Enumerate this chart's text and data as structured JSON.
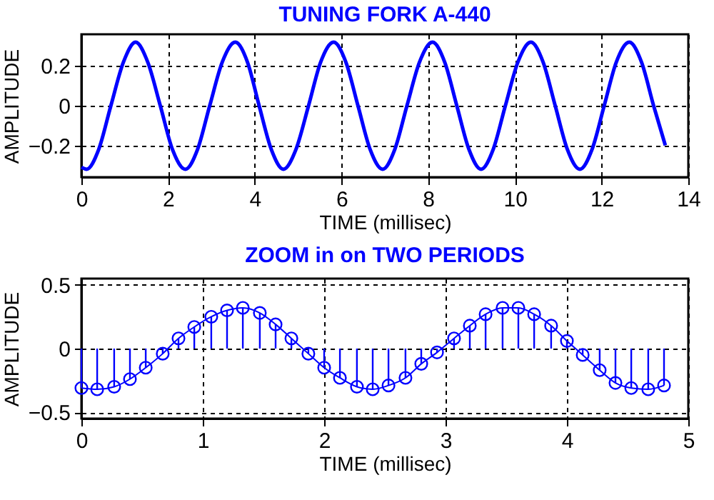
{
  "chart_data": [
    {
      "type": "line",
      "title": "TUNING FORK   A-440",
      "xlabel": "TIME   (millisec)",
      "ylabel": "AMPLITUDE",
      "xlim": [
        0,
        14
      ],
      "xticks": [
        0,
        2,
        4,
        6,
        8,
        10,
        12,
        14
      ],
      "ylim": [
        -0.36,
        0.36
      ],
      "yticks": [
        -0.2,
        0,
        0.2
      ],
      "grid": true,
      "x": [
        0,
        0.12,
        0.4,
        0.68,
        0.97,
        1.25,
        1.53,
        1.82,
        2.1,
        2.4,
        2.68,
        2.96,
        3.25,
        3.55,
        3.83,
        4.1,
        4.38,
        4.66,
        4.95,
        5.24,
        5.52,
        5.82,
        6.1,
        6.38,
        6.66,
        6.95,
        7.23,
        7.51,
        7.8,
        8.1,
        8.38,
        8.66,
        8.94,
        9.22,
        9.5,
        9.78,
        10.07,
        10.37,
        10.65,
        10.93,
        11.21,
        11.5,
        11.78,
        12.06,
        12.34,
        12.64,
        12.92,
        13.2,
        13.47
      ],
      "series": [
        {
          "color": "#0000ff",
          "values": [
            -0.31,
            -0.32,
            -0.22,
            0,
            0.22,
            0.32,
            0.22,
            0,
            -0.22,
            -0.32,
            -0.22,
            0,
            0.22,
            0.32,
            0.22,
            0,
            -0.22,
            -0.32,
            -0.22,
            0,
            0.22,
            0.32,
            0.22,
            0,
            -0.22,
            -0.32,
            -0.22,
            0,
            0.22,
            0.32,
            0.22,
            0,
            -0.22,
            -0.32,
            -0.22,
            0,
            0.22,
            0.32,
            0.22,
            0,
            -0.22,
            -0.32,
            -0.22,
            0,
            0.22,
            0.32,
            0.22,
            0,
            -0.2
          ]
        }
      ]
    },
    {
      "type": "lollipop",
      "title": "ZOOM in on TWO PERIODS",
      "xlabel": "TIME   (millisec)",
      "ylabel": "AMPLITUDE",
      "xlim": [
        0,
        5
      ],
      "xticks": [
        0,
        1,
        2,
        3,
        4,
        5
      ],
      "ylim": [
        -0.55,
        0.55
      ],
      "yticks": [
        -0.5,
        0,
        0.5
      ],
      "grid": true,
      "x": [
        0,
        0.13,
        0.27,
        0.4,
        0.53,
        0.67,
        0.8,
        0.93,
        1.07,
        1.2,
        1.33,
        1.47,
        1.6,
        1.73,
        1.87,
        2,
        2.13,
        2.27,
        2.4,
        2.53,
        2.67,
        2.8,
        2.93,
        3.07,
        3.2,
        3.33,
        3.47,
        3.6,
        3.73,
        3.87,
        4,
        4.13,
        4.27,
        4.4,
        4.53,
        4.67,
        4.8
      ],
      "series": [
        {
          "type": "lollipop",
          "marker": "circle",
          "color": "#0000ff",
          "values": [
            -0.31,
            -0.32,
            -0.3,
            -0.24,
            -0.15,
            -0.04,
            0.08,
            0.17,
            0.25,
            0.3,
            0.32,
            0.28,
            0.19,
            0.08,
            -0.04,
            -0.15,
            -0.23,
            -0.3,
            -0.32,
            -0.29,
            -0.23,
            -0.12,
            -0.03,
            0.08,
            0.18,
            0.27,
            0.32,
            0.32,
            0.27,
            0.18,
            0.06,
            -0.05,
            -0.17,
            -0.27,
            -0.31,
            -0.32,
            -0.29
          ]
        },
        {
          "type": "line",
          "color": "#0000ff",
          "values": [
            -0.31,
            -0.32,
            -0.3,
            -0.24,
            -0.15,
            -0.04,
            0.08,
            0.17,
            0.25,
            0.3,
            0.32,
            0.28,
            0.19,
            0.08,
            -0.04,
            -0.15,
            -0.23,
            -0.3,
            -0.32,
            -0.29,
            -0.23,
            -0.12,
            -0.03,
            0.08,
            0.18,
            0.27,
            0.32,
            0.32,
            0.27,
            0.18,
            0.06,
            -0.05,
            -0.17,
            -0.27,
            -0.31,
            -0.32,
            -0.29
          ]
        }
      ]
    }
  ]
}
